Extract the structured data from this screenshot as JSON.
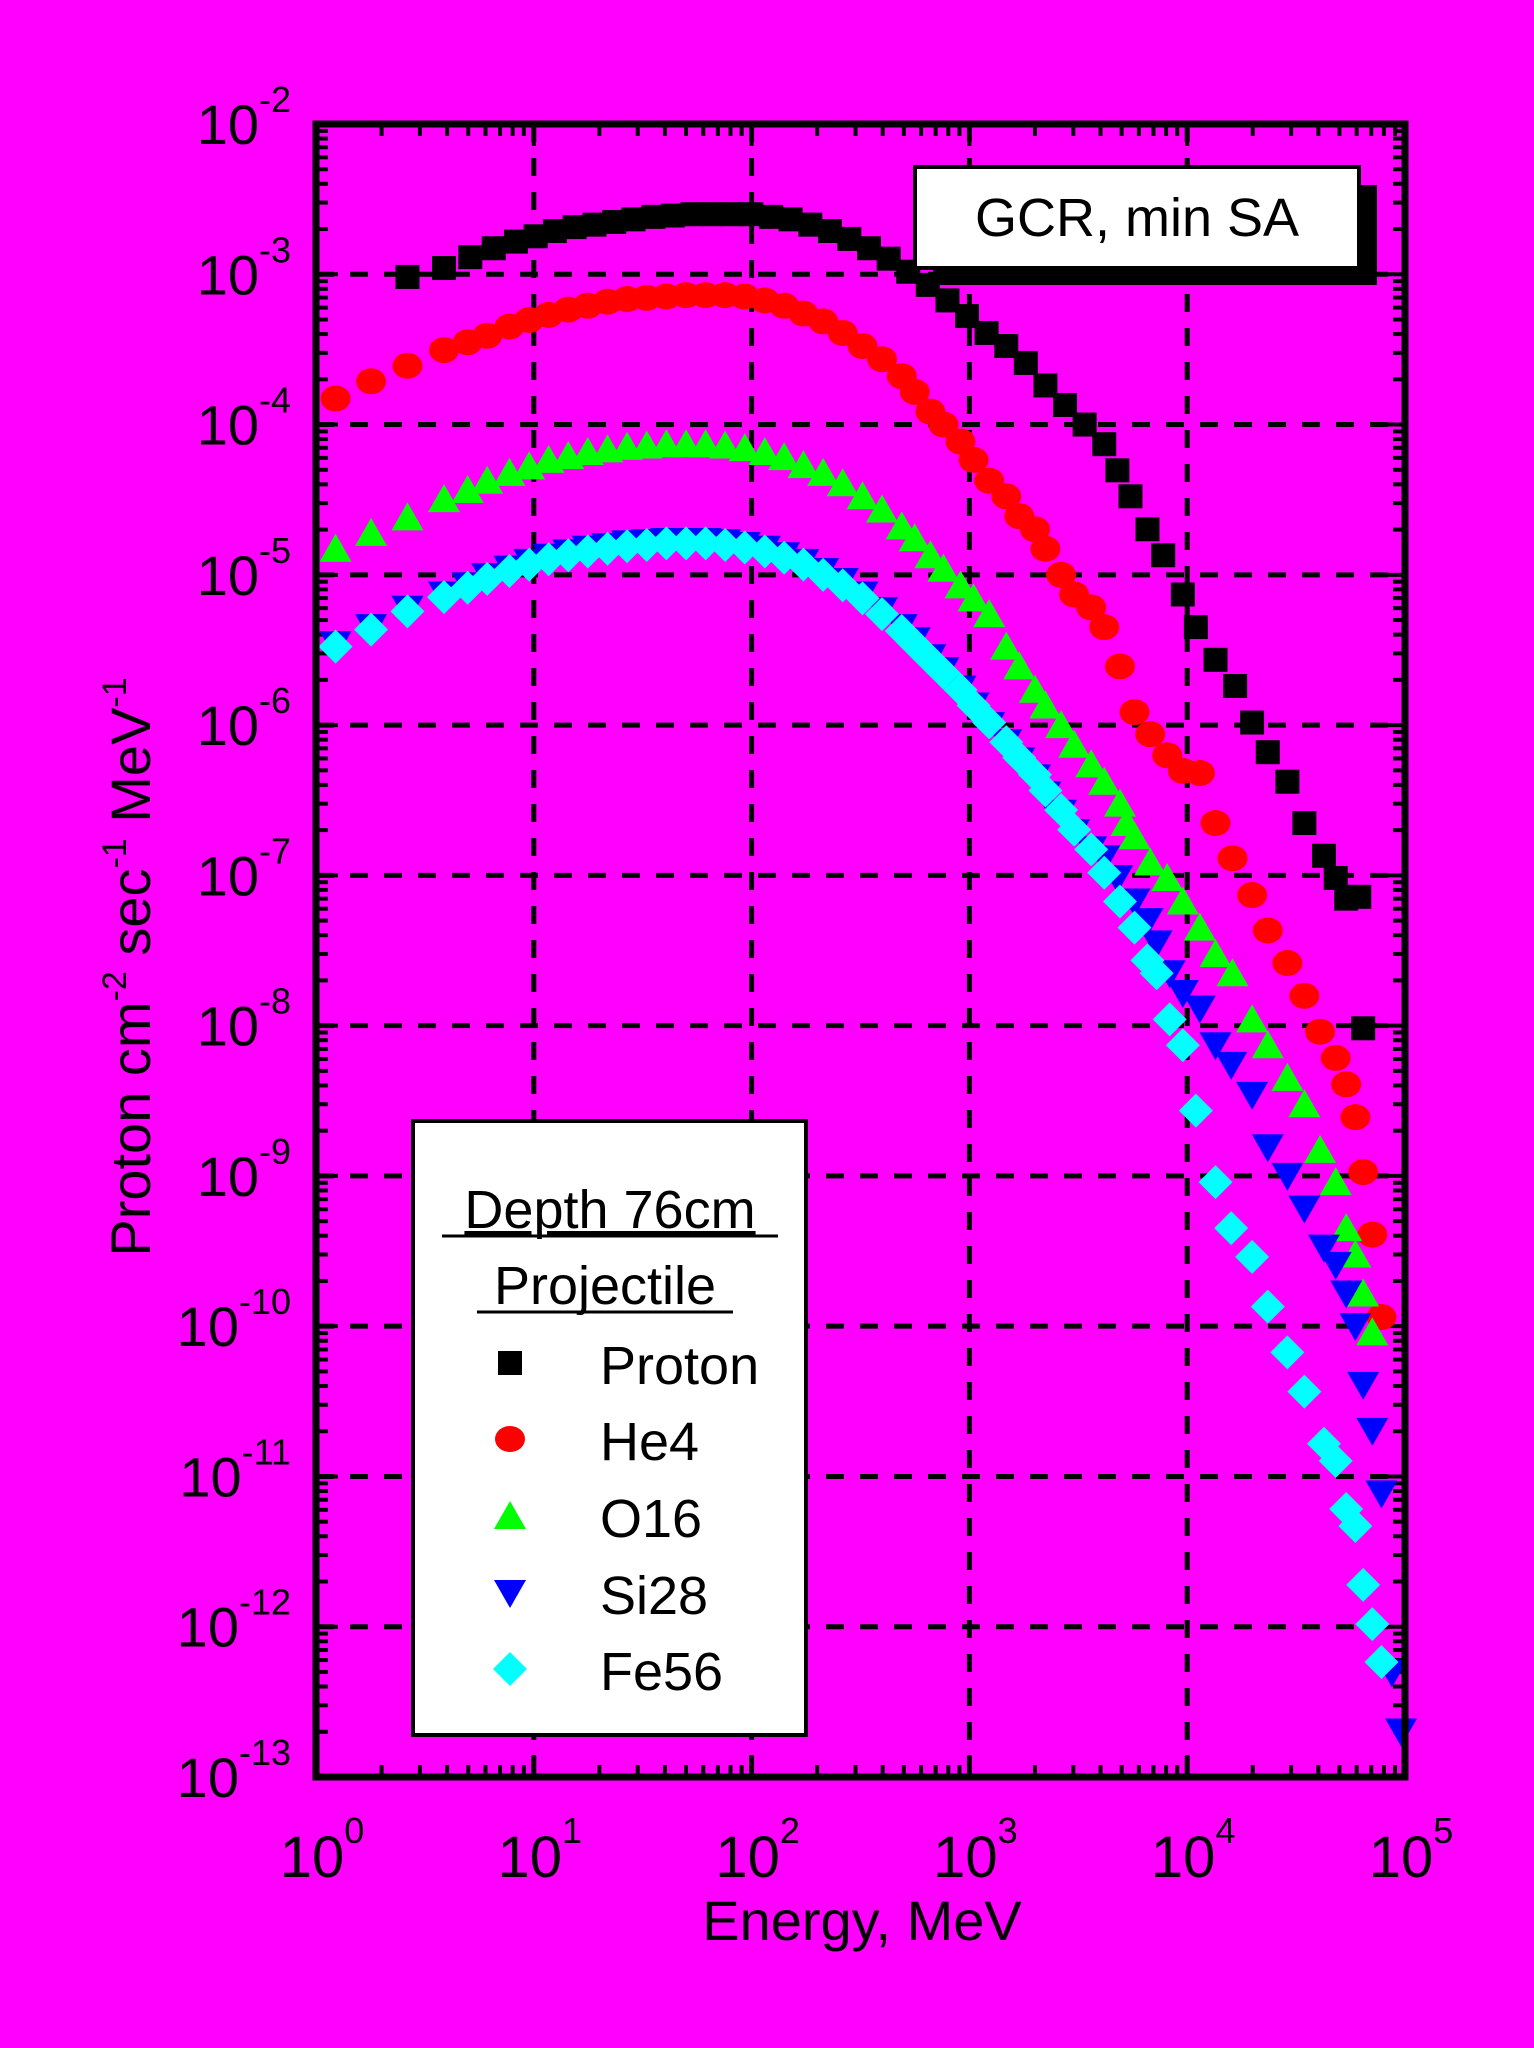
{
  "chart_data": {
    "type": "scatter",
    "title": "GCR, min SA",
    "xlabel": "Energy, MeV",
    "ylabel": {
      "p1": "Proton cm",
      "s1": "-2",
      "p2": " sec",
      "s2": "-1",
      "p3": " MeV",
      "s3": "-1"
    },
    "xscale": "log",
    "yscale": "log",
    "xlim": [
      1,
      100000
    ],
    "ylim": [
      1e-13,
      0.01
    ],
    "grid": true,
    "x_ticks": [
      {
        "base": "10",
        "exp": "0"
      },
      {
        "base": "10",
        "exp": "1"
      },
      {
        "base": "10",
        "exp": "2"
      },
      {
        "base": "10",
        "exp": "3"
      },
      {
        "base": "10",
        "exp": "4"
      },
      {
        "base": "10",
        "exp": "5"
      }
    ],
    "y_ticks": [
      {
        "base": "10",
        "exp": "-2"
      },
      {
        "base": "10",
        "exp": "-3"
      },
      {
        "base": "10",
        "exp": "-4"
      },
      {
        "base": "10",
        "exp": "-5"
      },
      {
        "base": "10",
        "exp": "-6"
      },
      {
        "base": "10",
        "exp": "-7"
      },
      {
        "base": "10",
        "exp": "-8"
      },
      {
        "base": "10",
        "exp": "-9"
      },
      {
        "base": "10",
        "exp": "-10"
      },
      {
        "base": "10",
        "exp": "-11"
      },
      {
        "base": "10",
        "exp": "-12"
      },
      {
        "base": "10",
        "exp": "-13"
      }
    ],
    "legend": {
      "placement": "bottom-left",
      "title1": "Depth 76cm",
      "title2": "Projectile"
    },
    "series": [
      {
        "name": "Proton",
        "marker": "square",
        "color": "#000000",
        "x": [
          2.63,
          3.87,
          5.11,
          6.55,
          8.28,
          10.2,
          12.5,
          15.4,
          19.0,
          23.4,
          28.7,
          35.4,
          43.5,
          53.5,
          65.9,
          81.1,
          99.7,
          123,
          151,
          186,
          229,
          281,
          346,
          426,
          524,
          644,
          793,
          975,
          1200,
          1476,
          1816,
          2234,
          2749,
          3382,
          4160,
          4780,
          5490,
          6570,
          7760,
          9550,
          10960,
          13490,
          16600,
          19860,
          23440,
          28840,
          34510,
          42460,
          48080,
          53700,
          61660,
          64270
        ],
        "y": [
          0.00096,
          0.0011,
          0.0013,
          0.00149,
          0.00165,
          0.00179,
          0.00194,
          0.00206,
          0.00214,
          0.00223,
          0.00232,
          0.00241,
          0.00246,
          0.00251,
          0.00251,
          0.00251,
          0.00251,
          0.00241,
          0.00232,
          0.00214,
          0.00194,
          0.00172,
          0.00149,
          0.00127,
          0.00104,
          0.00085,
          0.00067,
          0.000527,
          0.000407,
          0.000333,
          0.000257,
          0.000182,
          0.000135,
          0.0001,
          7.4e-05,
          4.96e-05,
          3.33e-05,
          2.01e-05,
          1.35e-05,
          7.4e-06,
          4.49e-06,
          2.72e-06,
          1.82e-06,
          1.04e-06,
          6.6e-07,
          4.2e-07,
          2.23e-07,
          1.35e-07,
          9.6e-08,
          7e-08,
          7.2e-08,
          9.6e-09
        ]
      },
      {
        "name": "He4",
        "marker": "circle",
        "color": "#ff0000",
        "x": [
          1.23,
          1.79,
          2.63,
          3.87,
          4.97,
          6.11,
          7.73,
          9.52,
          11.7,
          14.4,
          17.7,
          21.8,
          26.8,
          33.0,
          40.6,
          50.0,
          61.5,
          75.6,
          93.0,
          115,
          141,
          173,
          213,
          262,
          323,
          397,
          489,
          561,
          662,
          760,
          910,
          1045,
          1233,
          1476,
          1694,
          2000,
          2234,
          2636,
          3027,
          3624,
          4160,
          4911,
          5728,
          6761,
          8091,
          9550,
          11430,
          13490,
          16140,
          19860,
          23440,
          28840,
          34510,
          40740,
          48080,
          53700,
          59160,
          64270,
          70790,
          77980
        ],
        "y": [
          0.000149,
          0.000194,
          0.000246,
          0.000313,
          0.000353,
          0.00039,
          0.000449,
          0.000496,
          0.000537,
          0.000582,
          0.000618,
          0.000656,
          0.000684,
          0.000697,
          0.000711,
          0.000726,
          0.000726,
          0.000726,
          0.000711,
          0.00067,
          0.000618,
          0.000548,
          0.000486,
          0.000407,
          0.000333,
          0.000272,
          0.00021,
          0.000165,
          0.000122,
          0.0001,
          7.7e-05,
          5.82e-05,
          4.23e-05,
          3.33e-05,
          2.46e-05,
          2.01e-05,
          1.49e-05,
          1e-05,
          7.4e-06,
          6.07e-06,
          4.49e-06,
          2.46e-06,
          1.22e-06,
          8.7e-07,
          6.3e-07,
          4.96e-07,
          4.8e-07,
          2.23e-07,
          1.3e-07,
          7.4e-08,
          4.3e-08,
          2.61e-08,
          1.58e-08,
          9.1e-09,
          6.1e-09,
          4.07e-09,
          2.46e-09,
          1.06e-09,
          4.07e-10,
          1.15e-10
        ]
      },
      {
        "name": "O16",
        "marker": "triangle-up",
        "color": "#00ff00",
        "x": [
          1.23,
          1.79,
          2.63,
          3.87,
          4.97,
          6.11,
          7.73,
          9.52,
          11.7,
          14.4,
          17.7,
          21.8,
          26.8,
          33.0,
          40.6,
          50.0,
          61.5,
          75.6,
          93.0,
          115,
          141,
          173,
          213,
          262,
          323,
          397,
          489,
          561,
          662,
          760,
          910,
          1045,
          1233,
          1476,
          1694,
          2000,
          2234,
          2636,
          3027,
          3624,
          4160,
          4911,
          5265,
          5728,
          6761,
          8091,
          9550,
          11430,
          13490,
          16140,
          19860,
          23440,
          28840,
          34510,
          40740,
          48080,
          53700,
          59160,
          64270,
          70790
        ],
        "y": [
          1.49e-05,
          1.9e-05,
          2.41e-05,
          3.19e-05,
          3.67e-05,
          4.23e-05,
          4.77e-05,
          5.27e-05,
          5.82e-05,
          6.18e-05,
          6.56e-05,
          6.84e-05,
          7.11e-05,
          7.26e-05,
          7.4e-05,
          7.4e-05,
          7.4e-05,
          7.26e-05,
          6.97e-05,
          6.56e-05,
          6.07e-05,
          5.37e-05,
          4.77e-05,
          4.07e-05,
          3.33e-05,
          2.72e-05,
          2.1e-05,
          1.75e-05,
          1.35e-05,
          1.1e-05,
          8.5e-06,
          6.97e-06,
          5.48e-06,
          3.33e-06,
          2.46e-06,
          1.72e-06,
          1.35e-06,
          1e-06,
          7.4e-07,
          5.48e-07,
          4.2e-07,
          3e-07,
          2.23e-07,
          1.82e-07,
          1.22e-07,
          9.6e-08,
          6.7e-08,
          4.49e-08,
          3e-08,
          2.23e-08,
          1.1e-08,
          7.4e-09,
          4.49e-09,
          3e-09,
          1.49e-09,
          9.1e-10,
          4.49e-10,
          3e-10,
          1.65e-10,
          9.1e-11
        ]
      },
      {
        "name": "Si28",
        "marker": "triangle-down",
        "color": "#0000ff",
        "x": [
          1.23,
          1.79,
          2.63,
          3.87,
          4.97,
          6.11,
          7.73,
          9.52,
          11.7,
          14.4,
          17.7,
          21.8,
          26.8,
          33.0,
          40.6,
          50.0,
          61.5,
          75.6,
          93.0,
          115,
          141,
          173,
          213,
          262,
          323,
          397,
          489,
          561,
          662,
          760,
          910,
          1045,
          1233,
          1476,
          1694,
          2000,
          2234,
          2636,
          3027,
          3624,
          4160,
          4780,
          5728,
          6570,
          7240,
          8310,
          9550,
          11430,
          13490,
          15920,
          19860,
          23440,
          28840,
          34510,
          42460,
          48080,
          53700,
          59160,
          64270,
          70790,
          77980,
          87100,
          95900
        ],
        "y": [
          3.46e-06,
          4.49e-06,
          5.94e-06,
          7.4e-06,
          8.5e-06,
          9.8e-06,
          1.1e-05,
          1.22e-05,
          1.32e-05,
          1.41e-05,
          1.49e-05,
          1.55e-05,
          1.62e-05,
          1.65e-05,
          1.68e-05,
          1.68e-05,
          1.68e-05,
          1.65e-05,
          1.58e-05,
          1.49e-05,
          1.35e-05,
          1.22e-05,
          1.06e-05,
          9.1e-06,
          7.4e-06,
          5.82e-06,
          4.49e-06,
          3.67e-06,
          2.83e-06,
          2.32e-06,
          1.75e-06,
          1.35e-06,
          1e-06,
          7.7e-07,
          5.82e-07,
          4.49e-07,
          3.46e-07,
          2.61e-07,
          1.94e-07,
          1.49e-07,
          1.3e-07,
          9.6e-08,
          6.7e-08,
          4.96e-08,
          3.53e-08,
          2.23e-08,
          1.65e-08,
          1.3e-08,
          7.4e-09,
          5.48e-09,
          3.46e-09,
          1.55e-09,
          1e-09,
          6.07e-10,
          3.33e-10,
          2.56e-10,
          1.65e-10,
          1e-10,
          4.07e-11,
          2.01e-11,
          7.7e-12,
          4.96e-13,
          2.01e-13
        ]
      },
      {
        "name": "Fe56",
        "marker": "diamond",
        "color": "#00ffff",
        "x": [
          1.23,
          1.79,
          2.63,
          3.87,
          4.97,
          6.11,
          7.73,
          9.52,
          11.7,
          14.4,
          17.7,
          21.8,
          26.8,
          33.0,
          40.6,
          50.0,
          61.5,
          75.6,
          93.0,
          115,
          141,
          173,
          213,
          262,
          323,
          397,
          489,
          561,
          662,
          760,
          910,
          1045,
          1233,
          1476,
          1694,
          2000,
          2234,
          2636,
          3027,
          3624,
          4160,
          4911,
          5728,
          6570,
          7240,
          8310,
          9550,
          10960,
          13490,
          15920,
          19860,
          23440,
          28840,
          34510,
          42460,
          48080,
          53700,
          59160,
          64270,
          70790,
          77980
        ],
        "y": [
          3.33e-06,
          4.32e-06,
          5.71e-06,
          7.11e-06,
          8.2e-06,
          9.4e-06,
          1.06e-05,
          1.17e-05,
          1.27e-05,
          1.35e-05,
          1.43e-05,
          1.49e-05,
          1.55e-05,
          1.58e-05,
          1.62e-05,
          1.62e-05,
          1.62e-05,
          1.58e-05,
          1.52e-05,
          1.43e-05,
          1.3e-05,
          1.17e-05,
          1e-05,
          8.5e-06,
          6.97e-06,
          5.48e-06,
          4.23e-06,
          3.46e-06,
          2.72e-06,
          2.23e-06,
          1.72e-06,
          1.35e-06,
          1.04e-06,
          7.7e-07,
          6.07e-07,
          4.68e-07,
          3.67e-07,
          2.72e-07,
          2.01e-07,
          1.49e-07,
          1.04e-07,
          6.7e-08,
          4.49e-08,
          2.72e-08,
          2.23e-08,
          1.1e-08,
          7.4e-09,
          2.72e-09,
          9.1e-10,
          4.49e-10,
          2.89e-10,
          1.35e-10,
          6.7e-11,
          3.67e-11,
          1.65e-11,
          1.27e-11,
          6.07e-12,
          4.68e-12,
          1.9e-12,
          1.04e-12,
          5.82e-13
        ]
      }
    ]
  },
  "colors": {
    "background": "#ff00ff"
  }
}
